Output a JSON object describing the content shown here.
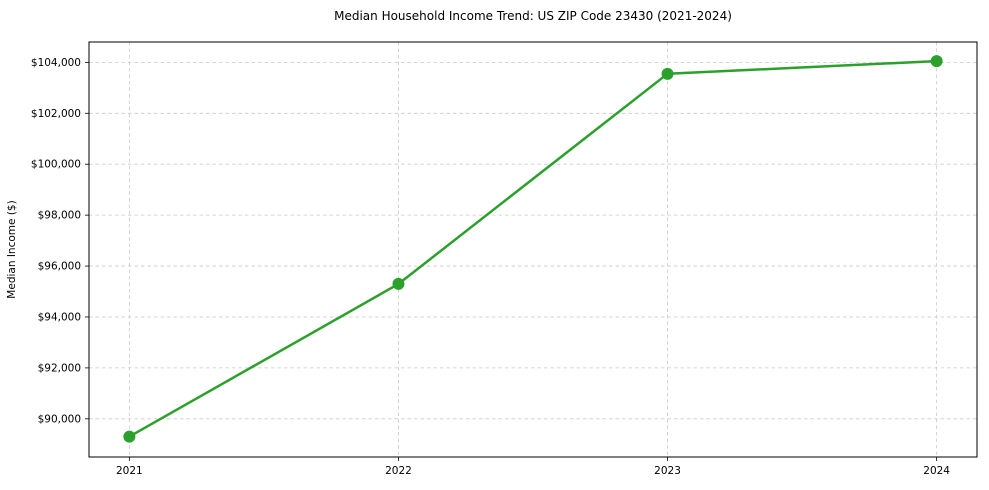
{
  "chart_data": {
    "type": "line",
    "title": "Median Household Income Trend: US ZIP Code 23430 (2021-2024)",
    "xlabel": "",
    "ylabel": "Median Income ($)",
    "categories": [
      "2021",
      "2022",
      "2023",
      "2024"
    ],
    "series": [
      {
        "name": "Median Household Income",
        "values": [
          89300,
          95300,
          103550,
          104050
        ]
      }
    ],
    "yticks": [
      90000,
      92000,
      94000,
      96000,
      98000,
      100000,
      102000,
      104000
    ],
    "ytick_labels": [
      "$90,000",
      "$92,000",
      "$94,000",
      "$96,000",
      "$98,000",
      "$100,000",
      "$102,000",
      "$104,000"
    ],
    "ylim": [
      88500,
      104800
    ],
    "xlim": [
      -0.15,
      3.15
    ],
    "grid": "on",
    "grid_style": "dashed",
    "legend": "none",
    "line_color": "#2ca02c",
    "marker": "circle",
    "grid_color": "#c9c9c9",
    "axis_color": "#000000",
    "text_color": "#000000",
    "background": "#ffffff"
  }
}
